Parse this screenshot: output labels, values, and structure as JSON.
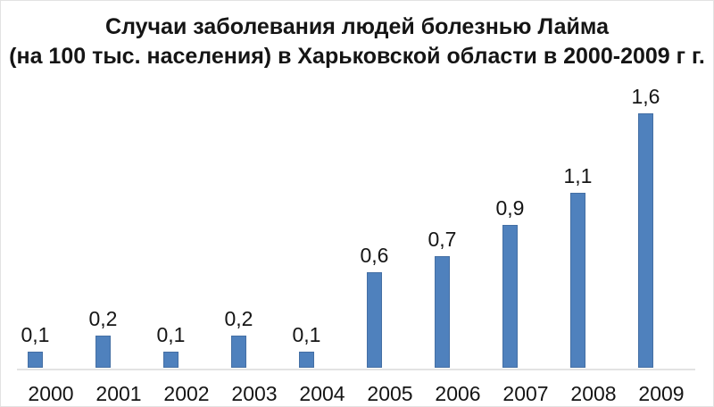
{
  "title": {
    "line1": "Случаи заболевания людей болезнью Лайма",
    "line2": "(на 100 тыс. населения) в Харьковской области в 2000-2009 г г."
  },
  "chart_data": {
    "type": "bar",
    "title": "Случаи заболевания людей болезнью Лайма (на 100 тыс. населения) в Харьковской области в 2000-2009 г г.",
    "categories": [
      "2000",
      "2001",
      "2002",
      "2003",
      "2004",
      "2005",
      "2006",
      "2007",
      "2008",
      "2009"
    ],
    "values": [
      0.1,
      0.2,
      0.1,
      0.2,
      0.1,
      0.6,
      0.7,
      0.9,
      1.1,
      1.6
    ],
    "data_labels": [
      "0,1",
      "0,2",
      "0,1",
      "0,2",
      "0,1",
      "0,6",
      "0,7",
      "0,9",
      "1,1",
      "1,6"
    ],
    "xlabel": "",
    "ylabel": "",
    "ylim": [
      0,
      1.8
    ],
    "grid": false,
    "legend": "none",
    "y_axis_visible": false,
    "colors": {
      "bar_fill": "#4f81bd",
      "bar_border": "#446fa4",
      "axis_line": "#e3e3e3",
      "text": "#151515"
    }
  }
}
